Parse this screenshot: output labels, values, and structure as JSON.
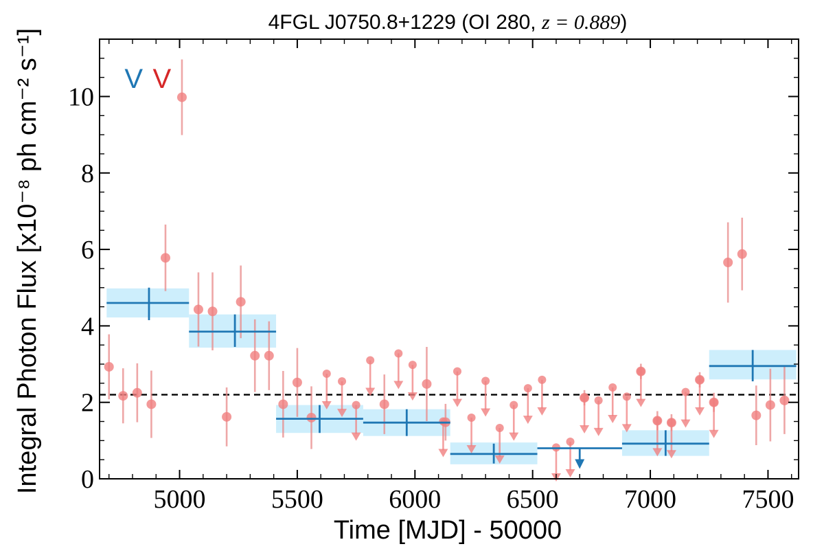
{
  "chart_data": {
    "type": "scatter",
    "title": "4FGL J0750.8+1229 (OI 280, z = 0.889)",
    "title_parts": {
      "prefix": "4FGL J0750.8+1229 (OI 280, ",
      "math": "z = 0.889",
      "suffix": ")"
    },
    "xlabel": "Time [MJD] - 50000",
    "ylabel": "Integral Photon Flux [x10⁻⁸ ph cm⁻² s⁻¹]",
    "xlim": [
      4660,
      7630
    ],
    "ylim": [
      0,
      11.5
    ],
    "x_ticks": [
      5000,
      5500,
      6000,
      6500,
      7000,
      7500
    ],
    "y_ticks": [
      0,
      2,
      4,
      6,
      8,
      10
    ],
    "x_tick_labels": [
      "5000",
      "5500",
      "6000",
      "6500",
      "7000",
      "7500"
    ],
    "y_tick_labels": [
      "0",
      "2",
      "4",
      "6",
      "8",
      "10"
    ],
    "reference_level": 2.2,
    "top_markers": [
      {
        "text": "V",
        "x": 4805,
        "color": "#1f77b4"
      },
      {
        "text": "V",
        "x": 4925,
        "color": "#d62728"
      }
    ],
    "short_bins": {
      "name": "",
      "color": "#f08080",
      "errorbar_color": "#e88a8a",
      "points": [
        {
          "x": 4700,
          "y": 2.93,
          "err": 0.85
        },
        {
          "x": 4760,
          "y": 2.17,
          "err": 0.72
        },
        {
          "x": 4820,
          "y": 2.25,
          "err": 0.77
        },
        {
          "x": 4880,
          "y": 1.95,
          "err": 0.88
        },
        {
          "x": 4940,
          "y": 5.78,
          "err": 0.87
        },
        {
          "x": 5010,
          "y": 9.98,
          "err": 0.99
        },
        {
          "x": 5080,
          "y": 4.43,
          "err": 0.97
        },
        {
          "x": 5140,
          "y": 4.38,
          "err": 1.02
        },
        {
          "x": 5200,
          "y": 1.62,
          "err": 0.77
        },
        {
          "x": 5260,
          "y": 4.63,
          "err": 0.95
        },
        {
          "x": 5320,
          "y": 3.22,
          "err": 0.95
        },
        {
          "x": 5380,
          "y": 3.22,
          "err": 0.9
        },
        {
          "x": 5440,
          "y": 1.95,
          "err": 0.87
        },
        {
          "x": 5500,
          "y": 2.52,
          "err": 0.9
        },
        {
          "x": 5560,
          "y": 1.6,
          "err": 0.82
        },
        {
          "x": 5870,
          "y": 1.95,
          "err": 0.78
        },
        {
          "x": 6050,
          "y": 2.48,
          "err": 0.97
        },
        {
          "x": 6130,
          "y": 1.48,
          "err": 0.48
        },
        {
          "x": 7270,
          "y": 2.0,
          "err": 0.25
        },
        {
          "x": 7330,
          "y": 5.66,
          "err": 1.05
        },
        {
          "x": 7390,
          "y": 5.88,
          "err": 0.95
        },
        {
          "x": 7450,
          "y": 1.66,
          "err": 0.78
        },
        {
          "x": 7510,
          "y": 1.93,
          "err": 0.95
        },
        {
          "x": 7570,
          "y": 2.05,
          "err": 0.88
        },
        {
          "x": 6720,
          "y": 2.12,
          "err": 0.2
        },
        {
          "x": 6960,
          "y": 2.81,
          "err": 0.2
        },
        {
          "x": 7030,
          "y": 1.52,
          "err": 0.25
        },
        {
          "x": 7090,
          "y": 1.47,
          "err": 0.22
        },
        {
          "x": 7210,
          "y": 2.59,
          "err": 0.2
        }
      ]
    },
    "upper_limits": {
      "name": "",
      "color": "#f08080",
      "points": [
        {
          "x": 5625,
          "y": 2.75
        },
        {
          "x": 5690,
          "y": 2.55
        },
        {
          "x": 5750,
          "y": 1.93
        },
        {
          "x": 5810,
          "y": 3.1
        },
        {
          "x": 5930,
          "y": 3.28
        },
        {
          "x": 5990,
          "y": 2.98
        },
        {
          "x": 6120,
          "y": 1.5
        },
        {
          "x": 6180,
          "y": 2.81
        },
        {
          "x": 6240,
          "y": 1.6
        },
        {
          "x": 6300,
          "y": 2.56
        },
        {
          "x": 6360,
          "y": 1.33
        },
        {
          "x": 6420,
          "y": 1.93
        },
        {
          "x": 6480,
          "y": 2.37
        },
        {
          "x": 6540,
          "y": 2.59
        },
        {
          "x": 6600,
          "y": 0.82
        },
        {
          "x": 6660,
          "y": 0.97
        },
        {
          "x": 6720,
          "y": 2.12
        },
        {
          "x": 6780,
          "y": 2.05
        },
        {
          "x": 6840,
          "y": 2.39
        },
        {
          "x": 6900,
          "y": 2.15
        },
        {
          "x": 6960,
          "y": 2.81
        },
        {
          "x": 7030,
          "y": 1.52
        },
        {
          "x": 7090,
          "y": 1.47
        },
        {
          "x": 7150,
          "y": 2.27
        },
        {
          "x": 7210,
          "y": 2.59
        },
        {
          "x": 7270,
          "y": 2.0
        }
      ]
    },
    "long_bins": {
      "name": "",
      "color": "#1f77b4",
      "band_color": "#cdeefc",
      "bins": [
        {
          "x0": 4690,
          "x1": 5040,
          "y": 4.6,
          "ylo": 4.22,
          "yhi": 4.98,
          "xc": 4870,
          "bar_lo": 4.15,
          "bar_hi": 5.0
        },
        {
          "x0": 5040,
          "x1": 5410,
          "y": 3.85,
          "ylo": 3.43,
          "yhi": 4.3,
          "xc": 5235,
          "bar_lo": 3.45,
          "bar_hi": 4.3
        },
        {
          "x0": 5410,
          "x1": 5780,
          "y": 1.57,
          "ylo": 1.2,
          "yhi": 1.93,
          "xc": 5595,
          "bar_lo": 1.2,
          "bar_hi": 1.93
        },
        {
          "x0": 5780,
          "x1": 6150,
          "y": 1.47,
          "ylo": 1.12,
          "yhi": 1.82,
          "xc": 5965,
          "bar_lo": 1.12,
          "bar_hi": 1.82
        },
        {
          "x0": 6150,
          "x1": 6520,
          "y": 0.65,
          "ylo": 0.38,
          "yhi": 0.95,
          "xc": 6335,
          "bar_lo": 0.4,
          "bar_hi": 0.92
        },
        {
          "x0": 6880,
          "x1": 7250,
          "y": 0.92,
          "ylo": 0.6,
          "yhi": 1.27,
          "xc": 7065,
          "bar_lo": 0.6,
          "bar_hi": 1.27
        },
        {
          "x0": 7250,
          "x1": 7620,
          "y": 2.95,
          "ylo": 2.6,
          "yhi": 3.37,
          "xc": 7435,
          "bar_lo": 2.55,
          "bar_hi": 3.37
        }
      ],
      "upper_limit_bin": {
        "x0": 6520,
        "x1": 6880,
        "y": 0.8,
        "xc": 6700
      }
    }
  }
}
